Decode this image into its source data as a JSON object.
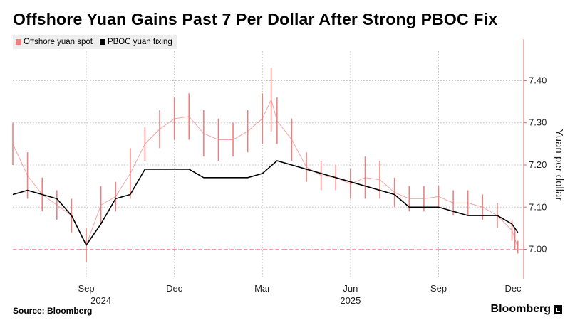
{
  "title": "Offshore Yuan Gains Past 7 Per Dollar After Strong PBOC Fix",
  "source": "Source: Bloomberg",
  "brand": "Bloomberg",
  "colors": {
    "spot": "#ef8080",
    "fixing": "#000000",
    "threshold": "#f0a0a0",
    "grid": "#bdbdbd"
  },
  "chart_data": {
    "type": "line",
    "title": "Offshore Yuan Gains Past 7 Per Dollar After Strong PBOC Fix",
    "ylabel": "Yuan per dollar",
    "ylim": [
      6.93,
      7.47
    ],
    "yticks": [
      7.0,
      7.1,
      7.2,
      7.3,
      7.4
    ],
    "ytick_labels": [
      "7.00",
      "7.10",
      "7.20",
      "7.30",
      "7.40"
    ],
    "xlim": [
      0,
      17.4
    ],
    "xticks": [
      {
        "x": 2.5,
        "label": "Sep"
      },
      {
        "x": 5.5,
        "label": "Dec"
      },
      {
        "x": 8.5,
        "label": "Mar"
      },
      {
        "x": 11.5,
        "label": "Jun"
      },
      {
        "x": 14.5,
        "label": "Sep"
      },
      {
        "x": 17.5,
        "label": "Dec"
      }
    ],
    "year_labels": [
      {
        "x": 3.0,
        "label": "2024"
      },
      {
        "x": 11.5,
        "label": "2025"
      }
    ],
    "threshold": 7.0,
    "legend": [
      "Offshore yuan spot",
      "PBOC yuan fixing"
    ],
    "series": [
      {
        "name": "Offshore yuan spot",
        "style": "ohlc",
        "x": [
          0,
          0.5,
          1,
          1.5,
          2,
          2.5,
          3,
          3.5,
          4,
          4.5,
          5,
          5.5,
          6,
          6.5,
          7,
          7.5,
          8,
          8.5,
          8.8,
          9,
          9.5,
          10,
          10.5,
          11,
          11.5,
          12,
          12.5,
          13,
          13.5,
          14,
          14.5,
          15,
          15.5,
          16,
          16.5,
          17,
          17.1,
          17.2
        ],
        "high": [
          7.3,
          7.23,
          7.17,
          7.14,
          7.12,
          7.05,
          7.15,
          7.16,
          7.24,
          7.29,
          7.33,
          7.36,
          7.37,
          7.33,
          7.31,
          7.3,
          7.33,
          7.37,
          7.43,
          7.36,
          7.31,
          7.23,
          7.21,
          7.2,
          7.19,
          7.22,
          7.21,
          7.17,
          7.15,
          7.15,
          7.15,
          7.14,
          7.14,
          7.13,
          7.11,
          7.07,
          7.05,
          7.02
        ],
        "low": [
          7.2,
          7.12,
          7.09,
          7.07,
          7.04,
          6.97,
          7.06,
          7.09,
          7.12,
          7.21,
          7.24,
          7.26,
          7.26,
          7.22,
          7.21,
          7.22,
          7.23,
          7.25,
          7.28,
          7.25,
          7.21,
          7.16,
          7.14,
          7.14,
          7.12,
          7.12,
          7.12,
          7.1,
          7.09,
          7.09,
          7.1,
          7.08,
          7.08,
          7.07,
          7.05,
          7.02,
          7.0,
          6.99
        ]
      },
      {
        "name": "PBOC yuan fixing",
        "style": "line",
        "x": [
          0,
          0.5,
          1,
          1.5,
          2,
          2.5,
          3,
          3.5,
          4,
          4.5,
          5,
          5.5,
          6,
          6.5,
          7,
          7.5,
          8,
          8.5,
          9,
          9.5,
          10,
          10.5,
          11,
          11.5,
          12,
          12.5,
          13,
          13.5,
          14,
          14.5,
          15,
          15.5,
          16,
          16.5,
          17,
          17.2
        ],
        "y": [
          7.13,
          7.14,
          7.13,
          7.12,
          7.08,
          7.01,
          7.06,
          7.12,
          7.13,
          7.19,
          7.19,
          7.19,
          7.19,
          7.17,
          7.17,
          7.17,
          7.17,
          7.18,
          7.21,
          7.2,
          7.19,
          7.18,
          7.17,
          7.16,
          7.15,
          7.14,
          7.13,
          7.1,
          7.1,
          7.1,
          7.09,
          7.08,
          7.08,
          7.08,
          7.06,
          7.04
        ]
      }
    ]
  }
}
